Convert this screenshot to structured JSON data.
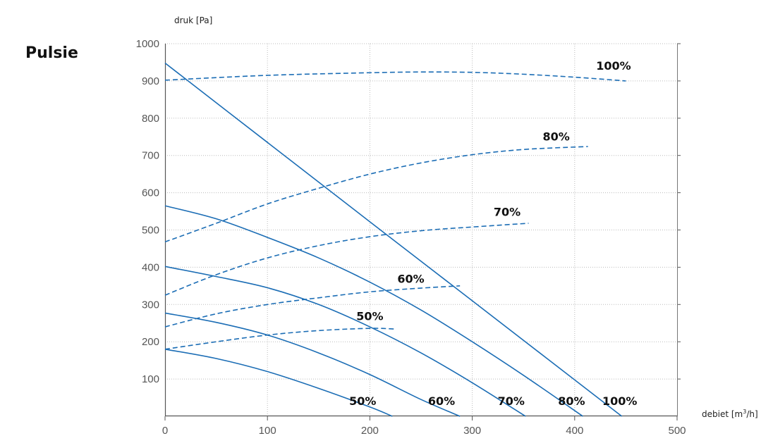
{
  "chart_data": {
    "type": "line",
    "title": "Pulsie",
    "ylabel": "druk [Pa]",
    "xlabel_main": "debiet [m",
    "xlabel_sup": "3",
    "xlabel_tail": "/h]",
    "xlim": [
      0,
      500
    ],
    "ylim": [
      0,
      1000
    ],
    "x_ticks": [
      0,
      100,
      200,
      300,
      400,
      500
    ],
    "y_ticks": [
      100,
      200,
      300,
      400,
      500,
      600,
      700,
      800,
      900,
      1000
    ],
    "grid": true,
    "colors": {
      "curve": "#1b6db5",
      "grid": "#bbbbbb",
      "axis": "#555555"
    },
    "fan_curves": [
      {
        "name": "50%",
        "style": "solid",
        "x": [
          0,
          50,
          100,
          150,
          200,
          222
        ],
        "y": [
          180,
          155,
          120,
          75,
          25,
          0
        ]
      },
      {
        "name": "60%",
        "style": "solid",
        "x": [
          0,
          50,
          100,
          150,
          200,
          250,
          288
        ],
        "y": [
          277,
          252,
          218,
          170,
          112,
          45,
          0
        ]
      },
      {
        "name": "70%",
        "style": "solid",
        "x": [
          0,
          50,
          100,
          150,
          200,
          250,
          300,
          352
        ],
        "y": [
          402,
          375,
          345,
          300,
          240,
          170,
          90,
          0
        ]
      },
      {
        "name": "80%",
        "style": "solid",
        "x": [
          0,
          50,
          100,
          150,
          200,
          250,
          300,
          350,
          408
        ],
        "y": [
          565,
          530,
          480,
          425,
          360,
          285,
          200,
          110,
          0
        ]
      },
      {
        "name": "100%",
        "style": "solid",
        "x": [
          0,
          100,
          200,
          300,
          446
        ],
        "y": [
          948,
          735,
          522,
          310,
          0
        ]
      }
    ],
    "system_curves": [
      {
        "name": "50%",
        "style": "dashed",
        "x": [
          0,
          50,
          100,
          150,
          200,
          225
        ],
        "y": [
          180,
          200,
          218,
          230,
          236,
          234
        ]
      },
      {
        "name": "60%",
        "style": "dashed",
        "x": [
          0,
          50,
          100,
          150,
          200,
          250,
          288
        ],
        "y": [
          240,
          275,
          300,
          318,
          334,
          344,
          350
        ]
      },
      {
        "name": "70%",
        "style": "dashed",
        "x": [
          0,
          50,
          100,
          150,
          200,
          250,
          300,
          355
        ],
        "y": [
          325,
          380,
          425,
          458,
          482,
          498,
          508,
          518
        ]
      },
      {
        "name": "80%",
        "style": "dashed",
        "x": [
          0,
          50,
          100,
          150,
          200,
          250,
          300,
          350,
          413
        ],
        "y": [
          468,
          518,
          570,
          612,
          650,
          680,
          702,
          716,
          724
        ]
      },
      {
        "name": "100%",
        "style": "dashed",
        "x": [
          0,
          100,
          200,
          250,
          300,
          350,
          400,
          450
        ],
        "y": [
          902,
          915,
          922,
          924,
          923,
          918,
          910,
          900
        ]
      }
    ],
    "bottom_labels": [
      {
        "text": "50%",
        "x": 193,
        "y": 30
      },
      {
        "text": "60%",
        "x": 270,
        "y": 30
      },
      {
        "text": "70%",
        "x": 338,
        "y": 30
      },
      {
        "text": "80%",
        "x": 397,
        "y": 30
      },
      {
        "text": "100%",
        "x": 444,
        "y": 30
      }
    ],
    "top_labels": [
      {
        "text": "50%",
        "x": 200,
        "y": 258
      },
      {
        "text": "60%",
        "x": 240,
        "y": 358
      },
      {
        "text": "70%",
        "x": 334,
        "y": 538
      },
      {
        "text": "80%",
        "x": 382,
        "y": 740
      },
      {
        "text": "100%",
        "x": 438,
        "y": 930
      }
    ]
  }
}
